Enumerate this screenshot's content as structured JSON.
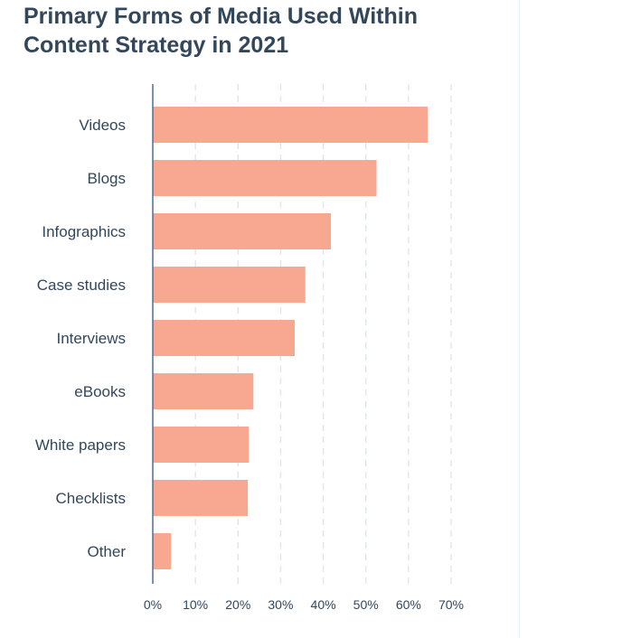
{
  "chart_data": {
    "type": "bar",
    "orientation": "horizontal",
    "title": "Primary Forms of Media Used Within Content Strategy in 2021",
    "categories": [
      "Videos",
      "Blogs",
      "Infographics",
      "Case studies",
      "Interviews",
      "eBooks",
      "White papers",
      "Checklists",
      "Other"
    ],
    "values": [
      64.5,
      52.5,
      41.8,
      35.8,
      33.3,
      23.6,
      22.5,
      22.3,
      4.3
    ],
    "xlim": [
      0,
      70
    ],
    "ticks": [
      "0%",
      "10%",
      "20%",
      "30%",
      "40%",
      "50%",
      "60%",
      "70%"
    ],
    "grid": true,
    "bar_color": "#f8a791"
  }
}
